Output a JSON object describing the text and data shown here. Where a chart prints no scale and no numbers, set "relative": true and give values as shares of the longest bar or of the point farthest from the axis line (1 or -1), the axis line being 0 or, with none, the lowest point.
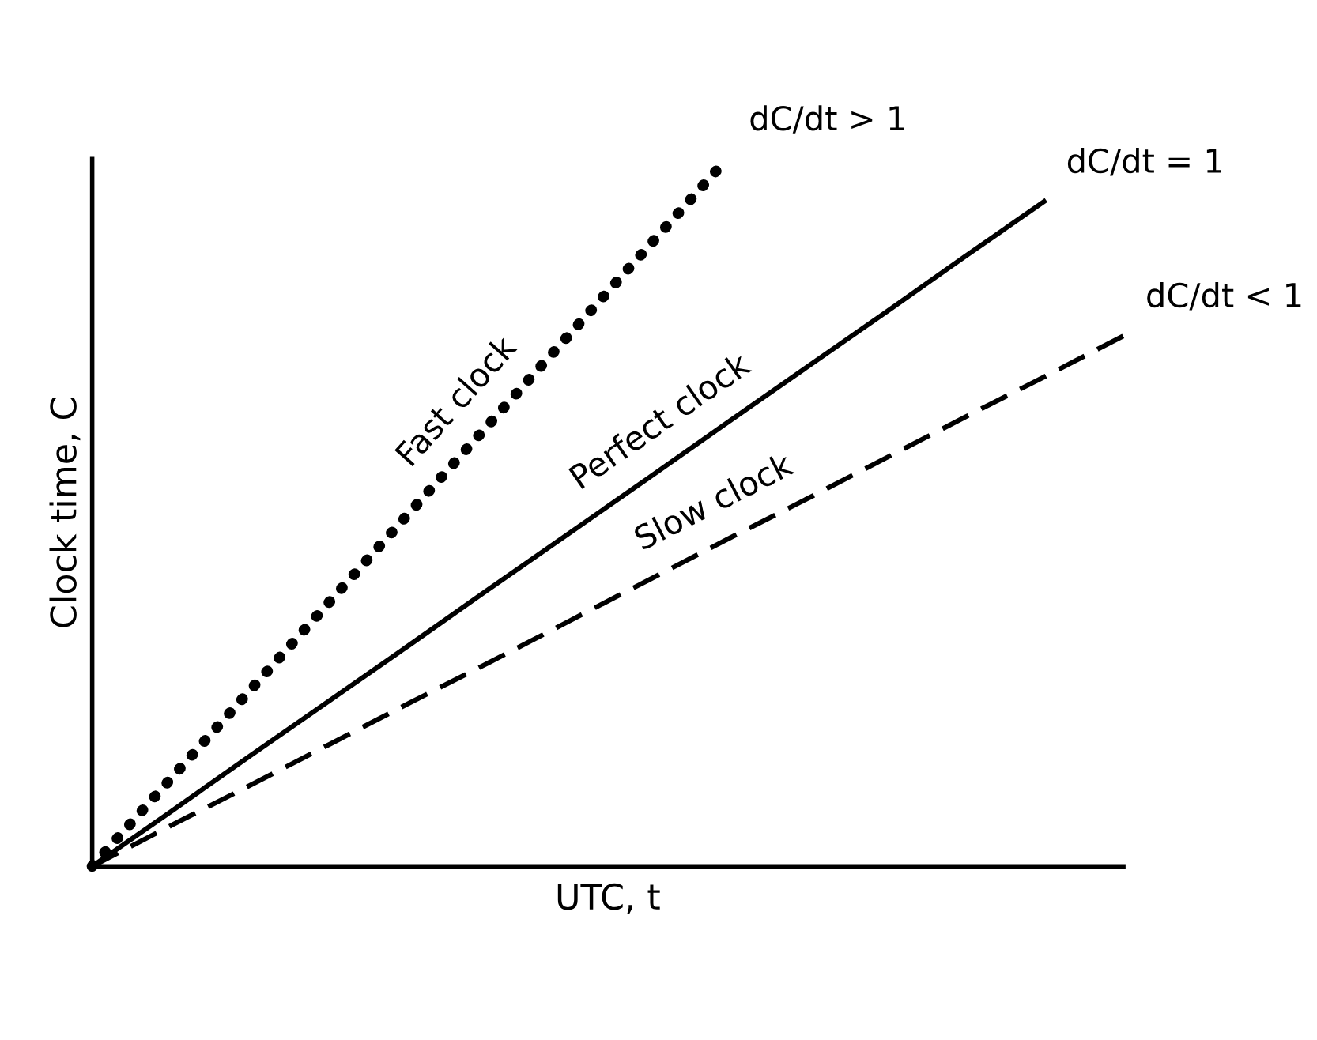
{
  "chart_data": {
    "type": "line",
    "relative": true,
    "xlabel": "UTC, t",
    "ylabel": "Clock time, C",
    "categories": [
      null,
      null,
      null,
      null,
      null,
      null,
      null,
      null,
      null,
      null,
      null,
      null,
      null,
      null
    ],
    "series": [
      {
        "name": "Fast clock",
        "color": "#000000",
        "line_style": "dotted",
        "values": [
          0,
          0.125,
          0.25,
          0.375,
          0.5,
          0.625,
          0.75,
          0.875,
          1,
          null,
          null,
          null,
          null,
          null
        ]
      },
      {
        "name": "Perfect clock",
        "color": "#000000",
        "line_style": "solid",
        "values": [
          0,
          0.078,
          0.157,
          0.235,
          0.313,
          0.392,
          0.47,
          0.548,
          0.627,
          0.705,
          0.783,
          0.862,
          0.94,
          null
        ]
      },
      {
        "name": "Slow clock",
        "color": "#000000",
        "line_style": "dashed",
        "values": [
          0,
          0.058,
          0.115,
          0.173,
          0.231,
          0.288,
          0.346,
          0.404,
          0.462,
          0.519,
          0.577,
          0.635,
          0.692,
          0.75
        ]
      }
    ],
    "annotations": [
      "dC/dt > 1",
      "dC/dt = 1",
      "dC/dt < 1"
    ]
  }
}
